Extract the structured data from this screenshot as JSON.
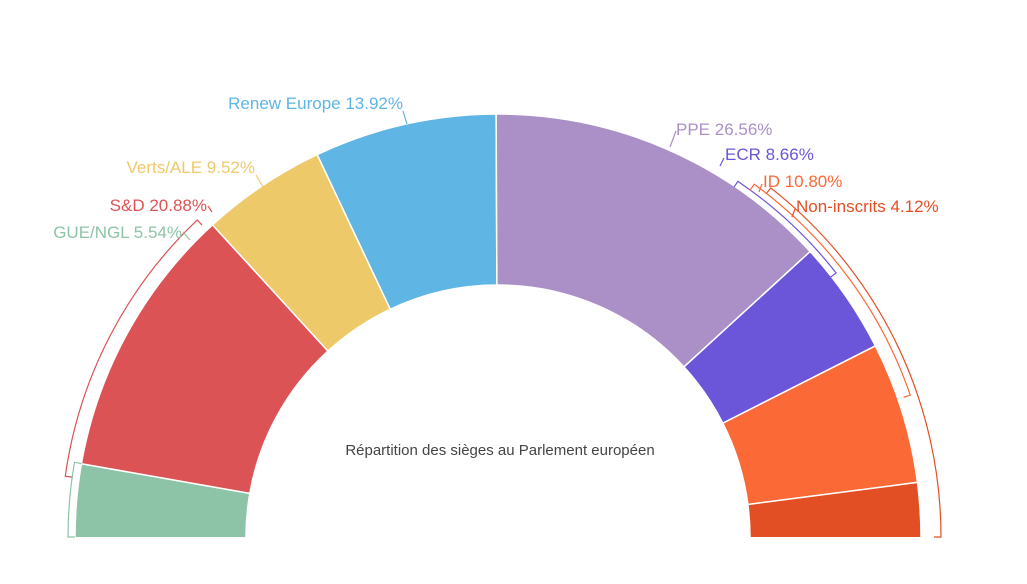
{
  "chart_data": {
    "type": "pie",
    "variant": "semi-donut",
    "title": "Répartition des sièges au Parlement européen",
    "unit": "%",
    "slices": [
      {
        "name": "GUE/NGL",
        "label": "GUE/NGL 5.54%",
        "value": 5.54,
        "color": "#8dc3a7"
      },
      {
        "name": "S&D",
        "label": "S&D 20.88%",
        "value": 20.88,
        "color": "#dc5356"
      },
      {
        "name": "Verts/ALE",
        "label": "Verts/ALE 9.52%",
        "value": 9.52,
        "color": "#eec96a"
      },
      {
        "name": "Renew Europe",
        "label": "Renew Europe 13.92%",
        "value": 13.92,
        "color": "#5fb5e3"
      },
      {
        "name": "PPE",
        "label": "PPE 26.56%",
        "value": 26.56,
        "color": "#ab90c7"
      },
      {
        "name": "ECR",
        "label": "ECR 8.66%",
        "value": 8.66,
        "color": "#6b56d9"
      },
      {
        "name": "ID",
        "label": "ID 10.80%",
        "value": 10.8,
        "color": "#fb6937"
      },
      {
        "name": "Non-inscrits",
        "label": "Non-inscrits 4.12%",
        "value": 4.12,
        "color": "#e24f25"
      }
    ],
    "legend": "none"
  }
}
